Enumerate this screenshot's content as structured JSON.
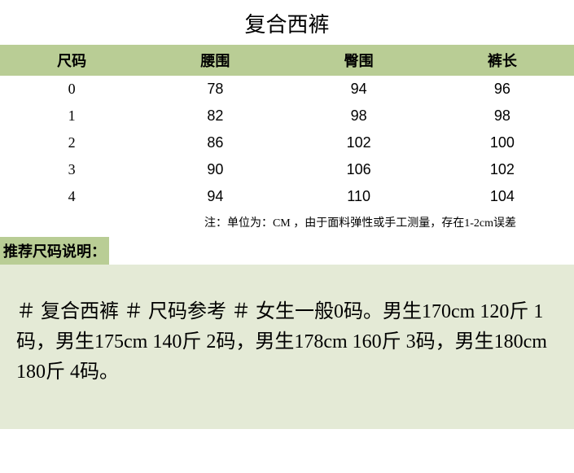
{
  "title": "复合西裤",
  "table": {
    "headers": [
      "尺码",
      "腰围",
      "臀围",
      "裤长"
    ],
    "rows": [
      [
        "0",
        "78",
        "94",
        "96"
      ],
      [
        "1",
        "82",
        "98",
        "98"
      ],
      [
        "2",
        "86",
        "102",
        "100"
      ],
      [
        "3",
        "90",
        "106",
        "102"
      ],
      [
        "4",
        "94",
        "110",
        "104"
      ]
    ],
    "header_bg": "#b9cd95",
    "header_fontsize": 18,
    "cell_fontsize": 18
  },
  "note": "注：单位为：CM ，由于面料弹性或手工测量，存在1-2cm误差",
  "recommendation": {
    "label": "推荐尺码说明：",
    "label_bg": "#b9cd95",
    "box_bg": "#e4ead6",
    "text": "＃ 复合西裤 ＃ 尺码参考 ＃ 女生一般0码。男生170cm 120斤 1码，男生175cm 140斤 2码，男生178cm 160斤 3码，男生180cm 180斤 4码。"
  },
  "colors": {
    "background": "#ffffff",
    "text": "#000000"
  }
}
